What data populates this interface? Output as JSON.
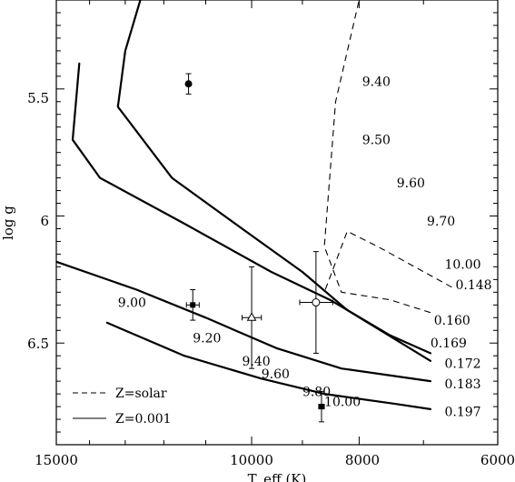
{
  "chart_data": {
    "type": "line",
    "xlabel": "T_eff (K)",
    "ylabel": "log g",
    "xlim": [
      15000,
      6000
    ],
    "ylim": [
      5.15,
      6.9
    ],
    "x_ticks": [
      "15000",
      "10000",
      "8000",
      "6000"
    ],
    "x_tick_values": [
      15000,
      10000,
      8000,
      6000
    ],
    "y_ticks": [
      "5.5",
      "6",
      "6.5"
    ],
    "y_tick_values": [
      5.5,
      6.0,
      6.5
    ],
    "legend_location": "bottom-left",
    "legend": [
      {
        "label": "Z=solar",
        "style": "dashed"
      },
      {
        "label": "Z=0.001",
        "style": "solid"
      }
    ],
    "tracks_solar": [
      {
        "mass": "0.148",
        "points": [
          [
            6600,
            6.28
          ],
          [
            7700,
            6.12
          ],
          [
            8200,
            6.06
          ],
          [
            8600,
            6.3
          ]
        ]
      },
      {
        "mass": "0.160",
        "points": [
          [
            6900,
            6.38
          ],
          [
            7500,
            6.33
          ],
          [
            8300,
            6.3
          ],
          [
            8600,
            6.12
          ],
          [
            8400,
            5.55
          ],
          [
            8000,
            5.15
          ]
        ]
      }
    ],
    "tracks_z001": [
      {
        "mass": "0.169",
        "points": [
          [
            14300,
            5.4
          ],
          [
            14500,
            5.7
          ],
          [
            13700,
            5.85
          ],
          [
            11500,
            6.03
          ],
          [
            9600,
            6.22
          ],
          [
            8500,
            6.33
          ],
          [
            7500,
            6.47
          ],
          [
            6900,
            6.54
          ]
        ]
      },
      {
        "mass": "0.172",
        "points": [
          [
            12600,
            5.15
          ],
          [
            13000,
            5.35
          ],
          [
            13200,
            5.57
          ],
          [
            11800,
            5.85
          ],
          [
            10200,
            6.05
          ],
          [
            9000,
            6.22
          ],
          [
            8200,
            6.37
          ],
          [
            6900,
            6.57
          ]
        ]
      },
      {
        "mass": "0.183",
        "points": [
          [
            15000,
            6.18
          ],
          [
            12700,
            6.29
          ],
          [
            11000,
            6.4
          ],
          [
            9500,
            6.52
          ],
          [
            8300,
            6.6
          ],
          [
            6900,
            6.65
          ]
        ]
      },
      {
        "mass": "0.197",
        "points": [
          [
            13500,
            6.42
          ],
          [
            11500,
            6.55
          ],
          [
            9800,
            6.64
          ],
          [
            8600,
            6.7
          ],
          [
            7400,
            6.74
          ],
          [
            6900,
            6.76
          ]
        ]
      }
    ],
    "isochrones_solar": [
      {
        "label": "9.40",
        "x": 7950,
        "y": 5.47
      },
      {
        "label": "9.50",
        "x": 7950,
        "y": 5.7
      },
      {
        "label": "9.60",
        "x": 7400,
        "y": 5.87
      },
      {
        "label": "9.70",
        "x": 6950,
        "y": 6.02
      },
      {
        "label": "10.00",
        "x": 6700,
        "y": 6.19
      }
    ],
    "isochrones_z001": [
      {
        "label": "9.00",
        "x": 13200,
        "y": 6.34
      },
      {
        "label": "9.20",
        "x": 11300,
        "y": 6.48
      },
      {
        "label": "9.40",
        "x": 10200,
        "y": 6.57
      },
      {
        "label": "9.60",
        "x": 9800,
        "y": 6.62
      },
      {
        "label": "9.80",
        "x": 9000,
        "y": 6.69
      },
      {
        "label": "10.00",
        "x": 8600,
        "y": 6.73
      }
    ],
    "mass_labels": [
      "0.148",
      "0.160",
      "0.169",
      "0.172",
      "0.183",
      "0.197"
    ],
    "observations": [
      {
        "marker": "filled-circle",
        "teff": 11400,
        "logg": 5.48,
        "logg_err": 0.04,
        "teff_err": 0
      },
      {
        "marker": "filled-square",
        "teff": 11300,
        "logg": 6.35,
        "logg_err": 0.06,
        "teff_err": 150
      },
      {
        "marker": "open-triangle",
        "teff": 10000,
        "logg": 6.4,
        "logg_err": 0.2,
        "teff_err": 200
      },
      {
        "marker": "open-circle",
        "teff": 8750,
        "logg": 6.34,
        "logg_err": 0.2,
        "teff_err": 300
      },
      {
        "marker": "filled-square",
        "teff": 8650,
        "logg": 6.75,
        "logg_err": 0.06,
        "teff_err": 50
      }
    ]
  }
}
